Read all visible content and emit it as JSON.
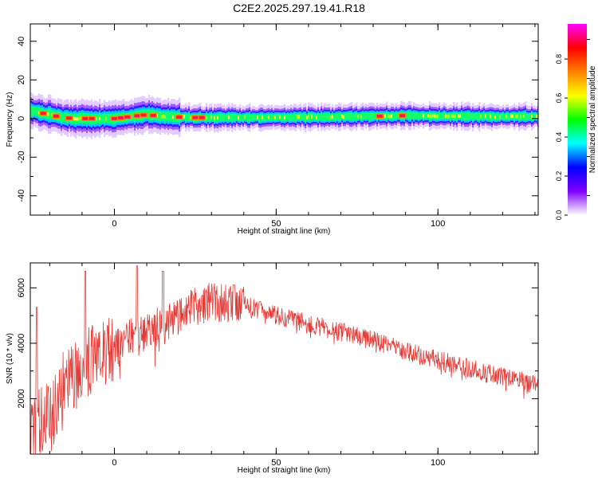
{
  "title": "C2E2.2025.297.19.41.R18",
  "chart_data": [
    {
      "type": "heatmap",
      "xlabel": "Height of straight line (km)",
      "ylabel": "Frequency (Hz)",
      "xlim": [
        -26,
        131
      ],
      "ylim": [
        -50,
        49
      ],
      "xticks": [
        0,
        50,
        100
      ],
      "yticks": [
        -40,
        -20,
        0,
        20,
        40
      ],
      "colorbar": {
        "label": "Normalized spectral amplitude",
        "range": [
          0.0,
          0.98
        ],
        "ticks": [
          0.0,
          0.2,
          0.4,
          0.6,
          0.8
        ],
        "colors": [
          "#ffffff",
          "#7f00ff",
          "#0000ff",
          "#00ffff",
          "#00ff00",
          "#ffff00",
          "#ff7f00",
          "#ff0000",
          "#ff00ff"
        ]
      },
      "band_center_hz": [
        [
          -26,
          4
        ],
        [
          -23,
          3
        ],
        [
          -20,
          2
        ],
        [
          -16,
          0.5
        ],
        [
          -12,
          0
        ],
        [
          -5,
          0
        ],
        [
          0,
          0
        ],
        [
          5,
          1
        ],
        [
          10,
          2
        ],
        [
          15,
          1
        ],
        [
          25,
          0.5
        ],
        [
          50,
          0.5
        ],
        [
          75,
          1
        ],
        [
          90,
          1.5
        ],
        [
          110,
          1
        ],
        [
          131,
          1
        ]
      ],
      "hot_spots_km": [
        -22,
        -18,
        -14,
        -9,
        -7,
        0,
        2,
        4,
        7,
        9,
        12,
        20,
        25,
        27,
        82,
        89
      ]
    },
    {
      "type": "line",
      "xlabel": "Height of straight line (km)",
      "ylabel": "SNR (10 * v/v)",
      "xlim": [
        -26,
        131
      ],
      "ylim": [
        0,
        6900
      ],
      "xticks": [
        0,
        50,
        100
      ],
      "yticks": [
        2000,
        4000,
        6000
      ],
      "color": "#e53935",
      "envelope": {
        "x": [
          -26,
          -20,
          -15,
          -10,
          -5,
          0,
          5,
          10,
          15,
          20,
          25,
          30,
          40,
          50,
          60,
          70,
          80,
          90,
          100,
          110,
          120,
          131
        ],
        "y": [
          800,
          1500,
          2600,
          3100,
          3600,
          3900,
          4300,
          4400,
          4700,
          5000,
          5400,
          5500,
          5400,
          5000,
          4700,
          4400,
          4100,
          3700,
          3400,
          3100,
          2800,
          2500
        ]
      },
      "peaks": [
        [
          -24,
          5300
        ],
        [
          -9,
          6600
        ],
        [
          7,
          6800
        ],
        [
          15,
          6600
        ],
        [
          37,
          6100
        ],
        [
          45,
          5500
        ]
      ]
    }
  ]
}
